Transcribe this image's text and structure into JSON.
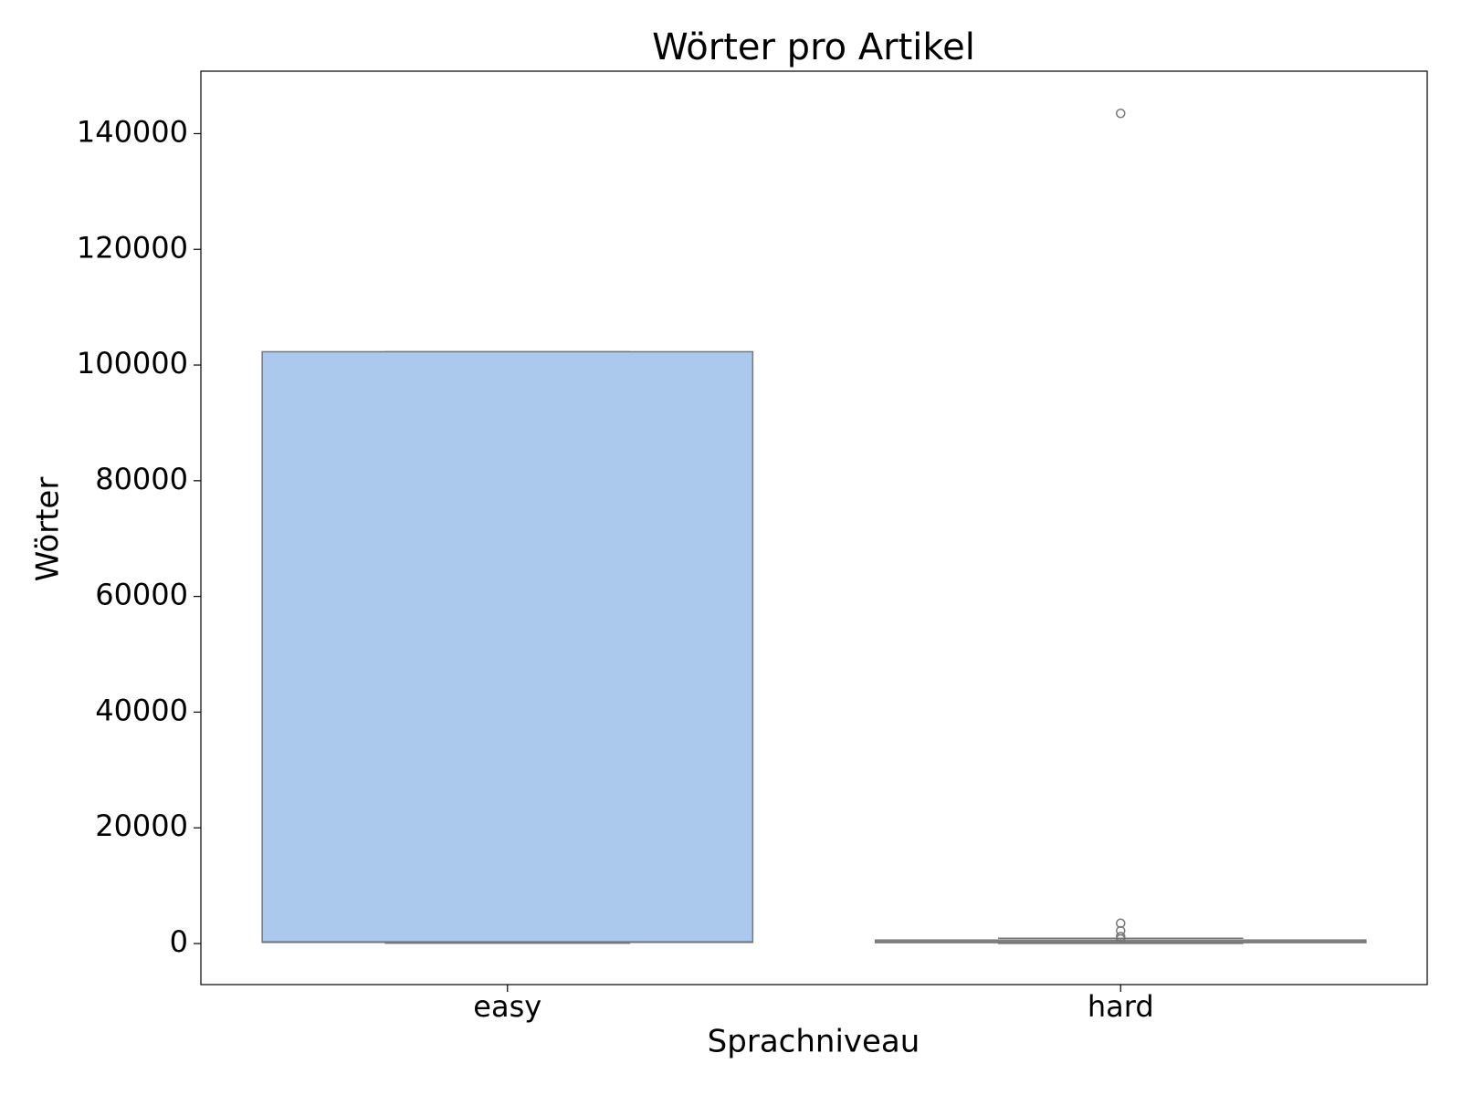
{
  "chart_data": {
    "type": "box",
    "title": "Wörter pro Artikel",
    "x_label": "Sprachniveau",
    "y_label": "Wörter",
    "categories": [
      "easy",
      "hard"
    ],
    "series": [
      {
        "name": "easy",
        "color": "#abc9ec",
        "min": 50,
        "q1": 200,
        "median": 250,
        "q3": 102300,
        "max": 102300,
        "outliers": []
      },
      {
        "name": "hard",
        "color": "#f7c6a3",
        "min": 20,
        "q1": 150,
        "median": 300,
        "q3": 600,
        "max": 900,
        "outliers": [
          143500,
          3500,
          2200,
          1200,
          800
        ]
      }
    ],
    "ylim": [
      -7100,
      150800
    ],
    "yticks": [
      0,
      20000,
      40000,
      60000,
      80000,
      100000,
      120000,
      140000
    ]
  }
}
